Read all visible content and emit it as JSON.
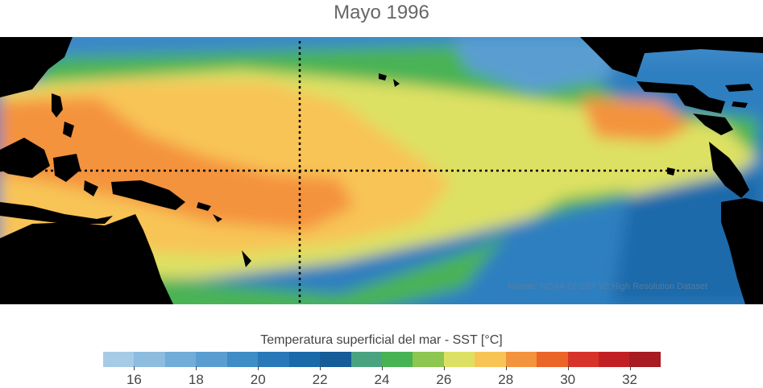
{
  "title": "Mayo 1996",
  "credit": "Fuente: NOAA OI SST V2 High Resolution Dataset",
  "colorbar": {
    "label": "Temperatura superficial del mar - SST  [°C]",
    "colors": [
      "#a6cbe6",
      "#8dbcdf",
      "#72acd8",
      "#5a9ed1",
      "#3f8cc6",
      "#2979b8",
      "#1a6aaa",
      "#155c98",
      "#4aa380",
      "#48b354",
      "#8dc650",
      "#dde163",
      "#f8c456",
      "#f4933d",
      "#eb6428",
      "#d8332a",
      "#c21f25",
      "#a81b22"
    ],
    "ticks": [
      "16",
      "18",
      "20",
      "22",
      "24",
      "26",
      "28",
      "30",
      "32"
    ]
  }
}
